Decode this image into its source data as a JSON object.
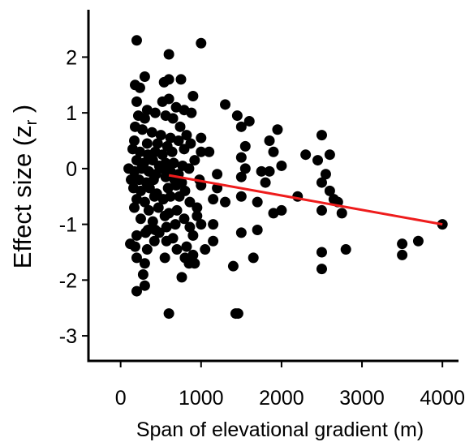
{
  "chart_data": {
    "type": "scatter",
    "xlabel": "Span of elevational gradient (m)",
    "ylabel": "Effect size (z",
    "ylabel_sub": "r",
    "ylabel_close": " )",
    "xlim": [
      -400,
      4200
    ],
    "ylim": [
      -3.45,
      2.85
    ],
    "xticks": [
      0,
      1000,
      2000,
      3000,
      4000
    ],
    "xtick_labels": [
      "0",
      "1000",
      "2000",
      "3000",
      "4000"
    ],
    "yticks": [
      -3,
      -2,
      -1,
      0,
      1,
      2
    ],
    "ytick_labels": [
      "-3",
      "-2",
      "-1",
      "0",
      "1",
      "2"
    ],
    "grid": false,
    "point_color": "#000000",
    "line_color": "#ee1c1c",
    "fit_line": {
      "x": [
        600,
        4000
      ],
      "y": [
        -0.12,
        -1.0
      ]
    },
    "points": [
      [
        200,
        2.3
      ],
      [
        1000,
        2.25
      ],
      [
        600,
        2.05
      ],
      [
        300,
        1.65
      ],
      [
        600,
        1.6
      ],
      [
        750,
        1.6
      ],
      [
        180,
        1.5
      ],
      [
        240,
        1.45
      ],
      [
        540,
        1.55
      ],
      [
        900,
        1.3
      ],
      [
        600,
        1.25
      ],
      [
        200,
        1.2
      ],
      [
        520,
        1.2
      ],
      [
        1300,
        1.15
      ],
      [
        330,
        1.05
      ],
      [
        430,
        1.0
      ],
      [
        690,
        1.1
      ],
      [
        790,
        1.05
      ],
      [
        880,
        1.0
      ],
      [
        220,
        0.95
      ],
      [
        300,
        0.9
      ],
      [
        560,
        0.95
      ],
      [
        650,
        0.9
      ],
      [
        1450,
        0.95
      ],
      [
        1600,
        0.85
      ],
      [
        180,
        0.75
      ],
      [
        270,
        0.7
      ],
      [
        390,
        0.65
      ],
      [
        500,
        0.6
      ],
      [
        620,
        0.55
      ],
      [
        740,
        0.75
      ],
      [
        820,
        0.6
      ],
      [
        1000,
        0.55
      ],
      [
        1500,
        0.75
      ],
      [
        1950,
        0.7
      ],
      [
        170,
        0.5
      ],
      [
        330,
        0.45
      ],
      [
        460,
        0.45
      ],
      [
        580,
        0.4
      ],
      [
        720,
        0.5
      ],
      [
        870,
        0.45
      ],
      [
        1100,
        0.3
      ],
      [
        1850,
        0.5
      ],
      [
        2500,
        0.6
      ],
      [
        150,
        0.35
      ],
      [
        240,
        0.3
      ],
      [
        340,
        0.25
      ],
      [
        430,
        0.3
      ],
      [
        520,
        0.25
      ],
      [
        640,
        0.3
      ],
      [
        790,
        0.35
      ],
      [
        1000,
        0.3
      ],
      [
        1550,
        0.4
      ],
      [
        1900,
        0.3
      ],
      [
        200,
        0.15
      ],
      [
        290,
        0.1
      ],
      [
        400,
        0.15
      ],
      [
        480,
        0.05
      ],
      [
        560,
        0.1
      ],
      [
        660,
        0.1
      ],
      [
        770,
        0.05
      ],
      [
        920,
        0.15
      ],
      [
        1500,
        0.2
      ],
      [
        2300,
        0.25
      ],
      [
        2600,
        0.25
      ],
      [
        100,
        0.0
      ],
      [
        170,
        -0.05
      ],
      [
        260,
        0.0
      ],
      [
        350,
        -0.05
      ],
      [
        440,
        -0.1
      ],
      [
        530,
        0.0
      ],
      [
        620,
        -0.05
      ],
      [
        720,
        -0.1
      ],
      [
        850,
        0.0
      ],
      [
        1550,
        0.0
      ],
      [
        1750,
        -0.05
      ],
      [
        2000,
        0.05
      ],
      [
        2450,
        0.15
      ],
      [
        130,
        -0.2
      ],
      [
        230,
        -0.2
      ],
      [
        320,
        -0.25
      ],
      [
        410,
        -0.2
      ],
      [
        560,
        -0.15
      ],
      [
        670,
        -0.2
      ],
      [
        760,
        -0.25
      ],
      [
        980,
        -0.2
      ],
      [
        1200,
        -0.1
      ],
      [
        1500,
        -0.15
      ],
      [
        1850,
        -0.05
      ],
      [
        2550,
        -0.1
      ],
      [
        160,
        -0.35
      ],
      [
        250,
        -0.4
      ],
      [
        360,
        -0.35
      ],
      [
        450,
        -0.45
      ],
      [
        590,
        -0.35
      ],
      [
        690,
        -0.3
      ],
      [
        800,
        -0.4
      ],
      [
        1000,
        -0.3
      ],
      [
        1200,
        -0.35
      ],
      [
        1800,
        -0.25
      ],
      [
        2500,
        -0.25
      ],
      [
        2600,
        -0.4
      ],
      [
        200,
        -0.55
      ],
      [
        300,
        -0.6
      ],
      [
        420,
        -0.5
      ],
      [
        530,
        -0.55
      ],
      [
        620,
        -0.5
      ],
      [
        730,
        -0.5
      ],
      [
        860,
        -0.6
      ],
      [
        1150,
        -0.55
      ],
      [
        1500,
        -0.5
      ],
      [
        2200,
        -0.5
      ],
      [
        2650,
        -0.55
      ],
      [
        2700,
        -0.6
      ],
      [
        170,
        -0.7
      ],
      [
        350,
        -0.75
      ],
      [
        470,
        -0.7
      ],
      [
        600,
        -0.8
      ],
      [
        700,
        -0.75
      ],
      [
        950,
        -0.7
      ],
      [
        1300,
        -0.6
      ],
      [
        1700,
        -0.6
      ],
      [
        2000,
        -0.75
      ],
      [
        2500,
        -0.75
      ],
      [
        2750,
        -0.8
      ],
      [
        250,
        -0.9
      ],
      [
        400,
        -0.95
      ],
      [
        550,
        -0.85
      ],
      [
        790,
        -0.9
      ],
      [
        950,
        -0.85
      ],
      [
        1900,
        -0.8
      ],
      [
        340,
        -1.1
      ],
      [
        430,
        -1.1
      ],
      [
        570,
        -1.05
      ],
      [
        680,
        -1.0
      ],
      [
        860,
        -1.05
      ],
      [
        1000,
        -1.0
      ],
      [
        1150,
        -1.0
      ],
      [
        200,
        -1.2
      ],
      [
        310,
        -1.15
      ],
      [
        480,
        -1.15
      ],
      [
        900,
        -1.2
      ],
      [
        1500,
        -1.15
      ],
      [
        1700,
        -1.1
      ],
      [
        420,
        -1.3
      ],
      [
        570,
        -1.3
      ],
      [
        650,
        -1.25
      ],
      [
        1150,
        -1.3
      ],
      [
        120,
        -1.35
      ],
      [
        180,
        -1.4
      ],
      [
        330,
        -1.45
      ],
      [
        700,
        -1.45
      ],
      [
        820,
        -1.4
      ],
      [
        1050,
        -1.45
      ],
      [
        2800,
        -1.45
      ],
      [
        3500,
        -1.35
      ],
      [
        3700,
        -1.3
      ],
      [
        2500,
        -1.5
      ],
      [
        3500,
        -1.55
      ],
      [
        200,
        -1.6
      ],
      [
        550,
        -1.6
      ],
      [
        800,
        -1.6
      ],
      [
        920,
        -1.7
      ],
      [
        1650,
        -1.6
      ],
      [
        900,
        -1.55
      ],
      [
        850,
        -1.7
      ],
      [
        300,
        -1.7
      ],
      [
        1400,
        -1.75
      ],
      [
        2500,
        -1.8
      ],
      [
        280,
        -1.9
      ],
      [
        760,
        -1.95
      ],
      [
        300,
        -2.1
      ],
      [
        200,
        -2.2
      ],
      [
        600,
        -2.6
      ],
      [
        1430,
        -2.6
      ],
      [
        1460,
        -2.6
      ],
      [
        4000,
        -1.0
      ]
    ]
  }
}
